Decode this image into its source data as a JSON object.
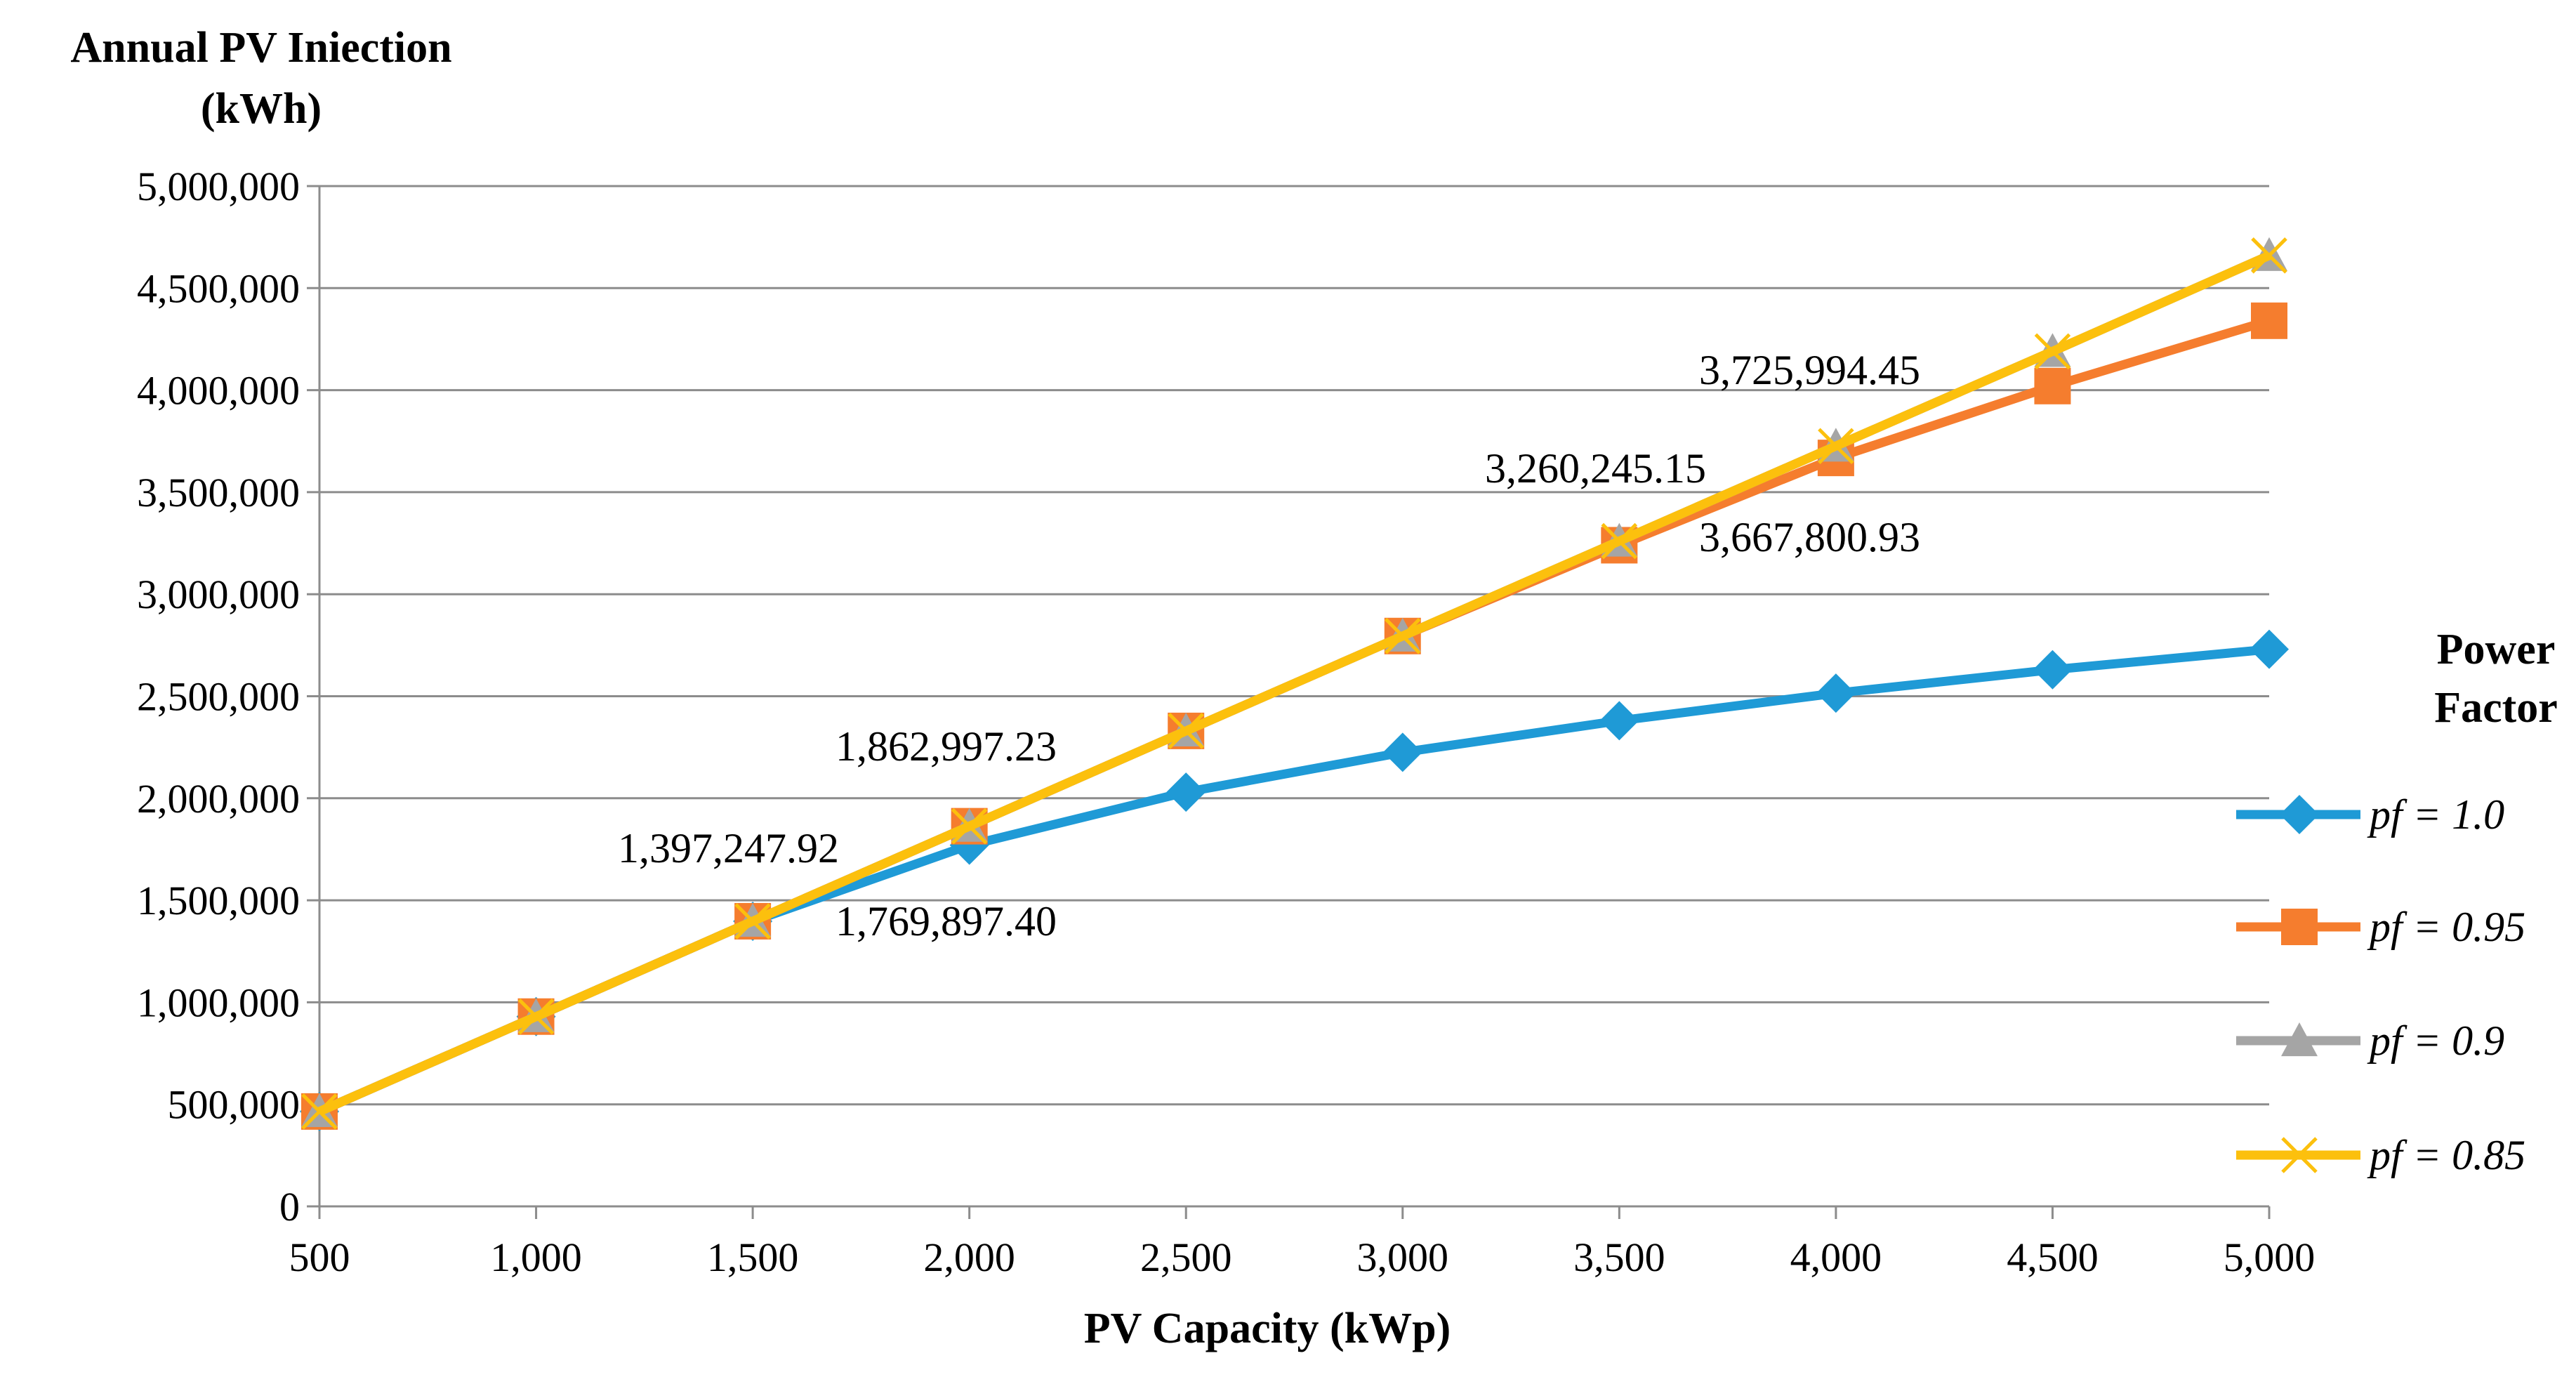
{
  "chart_data": {
    "type": "line",
    "ylabel_lines": [
      "Annual PV Iniection",
      "(kWh)"
    ],
    "xlabel": "PV Capacity (kWp)",
    "x": [
      500,
      1000,
      1500,
      2000,
      2500,
      3000,
      3500,
      4000,
      4500,
      5000
    ],
    "x_tick_labels": [
      "500",
      "1,000",
      "1,500",
      "2,000",
      "2,500",
      "3,000",
      "3,500",
      "4,000",
      "4,500",
      "5,000"
    ],
    "xlim": [
      500,
      5000
    ],
    "ylim": [
      0,
      5000000
    ],
    "y_ticks": [
      0,
      500000,
      1000000,
      1500000,
      2000000,
      2500000,
      3000000,
      3500000,
      4000000,
      4500000,
      5000000
    ],
    "y_tick_labels": [
      "0",
      "500,000",
      "1,000,000",
      "1,500,000",
      "2,000,000",
      "2,500,000",
      "3,000,000",
      "3,500,000",
      "4,000,000",
      "4,500,000",
      "5,000,000"
    ],
    "grid": "horizontal",
    "legend_title_lines": [
      "Power",
      "Factor"
    ],
    "legend_position": "right",
    "series": [
      {
        "name": "pf = 1.0",
        "color": "#1f9ad6",
        "marker": "diamond",
        "values": [
          465000,
          930000,
          1397247.92,
          1769897.4,
          2030000,
          2225000,
          2380000,
          2515000,
          2630000,
          2730000
        ]
      },
      {
        "name": "pf = 0.95",
        "color": "#f57d2e",
        "marker": "square",
        "values": [
          465000,
          930000,
          1397247.92,
          1862997.23,
          2330000,
          2795000,
          3240000,
          3667800.93,
          4020000,
          4340000
        ]
      },
      {
        "name": "pf = 0.9",
        "color": "#a5a5a5",
        "marker": "triangle",
        "values": [
          465000,
          930000,
          1397247.92,
          1862997.23,
          2330000,
          2795000,
          3260245.15,
          3725994.45,
          4190000,
          4660000
        ]
      },
      {
        "name": "pf = 0.85",
        "color": "#fcc00d",
        "marker": "x",
        "values": [
          465000,
          930000,
          1397247.92,
          1862997.23,
          2330000,
          2795000,
          3260245.15,
          3725994.45,
          4190000,
          4660000
        ]
      }
    ],
    "annotations": [
      {
        "text": "1,397,247.92"
      },
      {
        "text": "1,862,997.23"
      },
      {
        "text": "1,769,897.40"
      },
      {
        "text": "3,260,245.15"
      },
      {
        "text": "3,725,994.45"
      },
      {
        "text": "3,667,800.93"
      }
    ]
  }
}
